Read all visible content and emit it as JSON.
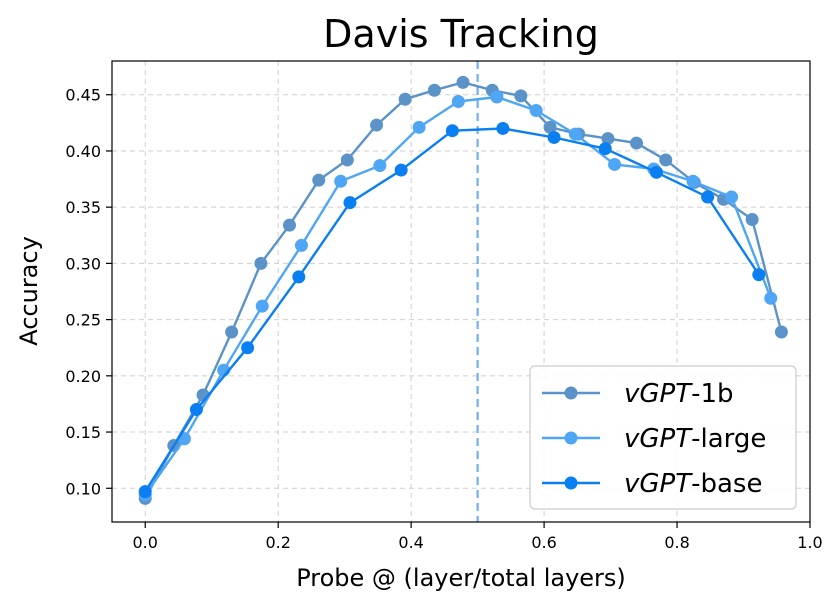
{
  "chart_data": {
    "type": "line",
    "title": "Davis Tracking",
    "xlabel": "Probe @ (layer/total layers)",
    "ylabel": "Accuracy",
    "xlim": [
      -0.05,
      1.0
    ],
    "ylim": [
      0.07,
      0.48
    ],
    "xticks": [
      0.0,
      0.2,
      0.4,
      0.6,
      0.8,
      1.0
    ],
    "xtick_labels": [
      "0.0",
      "0.2",
      "0.4",
      "0.6",
      "0.8",
      "1.0"
    ],
    "yticks": [
      0.1,
      0.15,
      0.2,
      0.25,
      0.3,
      0.35,
      0.4,
      0.45
    ],
    "ytick_labels": [
      "0.10",
      "0.15",
      "0.20",
      "0.25",
      "0.30",
      "0.35",
      "0.40",
      "0.45"
    ],
    "grid": true,
    "legend_position": "bottom-right",
    "vline": {
      "x": 0.5,
      "color": "#6fb0f5",
      "style": "dashed"
    },
    "series": [
      {
        "name_italic": "vGPT",
        "name_suffix": "-1b",
        "color": "#5b93c9",
        "x": [
          0.0,
          0.043,
          0.087,
          0.13,
          0.174,
          0.217,
          0.261,
          0.304,
          0.348,
          0.391,
          0.435,
          0.478,
          0.522,
          0.565,
          0.609,
          0.652,
          0.696,
          0.739,
          0.783,
          0.826,
          0.87,
          0.913,
          0.957
        ],
        "y": [
          0.091,
          0.138,
          0.183,
          0.239,
          0.3,
          0.334,
          0.374,
          0.392,
          0.423,
          0.446,
          0.454,
          0.461,
          0.454,
          0.449,
          0.421,
          0.415,
          0.411,
          0.407,
          0.392,
          0.372,
          0.357,
          0.339,
          0.239
        ]
      },
      {
        "name_italic": "vGPT",
        "name_suffix": "-large",
        "color": "#4ea6f5",
        "x": [
          0.0,
          0.059,
          0.118,
          0.176,
          0.235,
          0.294,
          0.353,
          0.412,
          0.471,
          0.529,
          0.588,
          0.647,
          0.706,
          0.765,
          0.824,
          0.882,
          0.941
        ],
        "y": [
          0.094,
          0.144,
          0.205,
          0.262,
          0.316,
          0.373,
          0.387,
          0.421,
          0.444,
          0.448,
          0.436,
          0.415,
          0.388,
          0.384,
          0.373,
          0.359,
          0.269
        ]
      },
      {
        "name_italic": "vGPT",
        "name_suffix": "-base",
        "color": "#0a7ff2",
        "x": [
          0.0,
          0.077,
          0.154,
          0.231,
          0.308,
          0.385,
          0.462,
          0.538,
          0.615,
          0.692,
          0.769,
          0.846,
          0.923
        ],
        "y": [
          0.097,
          0.17,
          0.225,
          0.288,
          0.354,
          0.383,
          0.418,
          0.42,
          0.412,
          0.402,
          0.381,
          0.359,
          0.29
        ]
      }
    ]
  }
}
